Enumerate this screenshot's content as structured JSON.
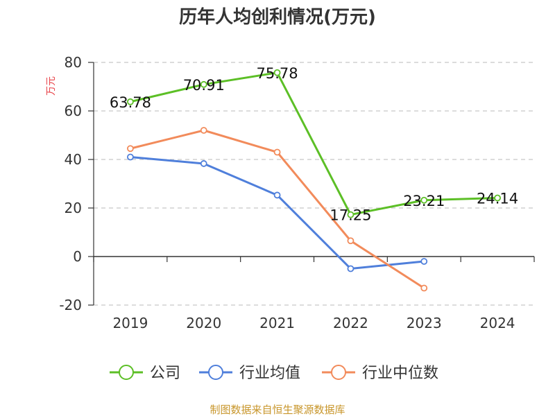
{
  "chart_data": {
    "type": "line",
    "title": "历年人均创利情况(万元)",
    "ylabel": "万元",
    "categories": [
      "2019",
      "2020",
      "2021",
      "2022",
      "2023",
      "2024"
    ],
    "ylim": [
      -20,
      80
    ],
    "yticks": [
      80,
      60,
      40,
      20,
      0,
      -20
    ],
    "grid": true,
    "legend_position": "bottom",
    "series": [
      {
        "name": "公司",
        "color": "#5cbf26",
        "values": [
          63.78,
          70.91,
          75.78,
          17.25,
          23.21,
          24.14
        ],
        "labels": [
          "63.78",
          "70.91",
          "75.78",
          "17.25",
          "23.21",
          "24.14"
        ]
      },
      {
        "name": "行业均值",
        "color": "#4f7fdb",
        "values": [
          41.0,
          38.3,
          25.3,
          -5.0,
          -2.0,
          null
        ]
      },
      {
        "name": "行业中位数",
        "color": "#f28b5b",
        "values": [
          44.5,
          52.0,
          43.0,
          6.5,
          -13.0,
          null
        ]
      }
    ]
  },
  "footer": {
    "source": "制图数据来自恒生聚源数据库"
  }
}
